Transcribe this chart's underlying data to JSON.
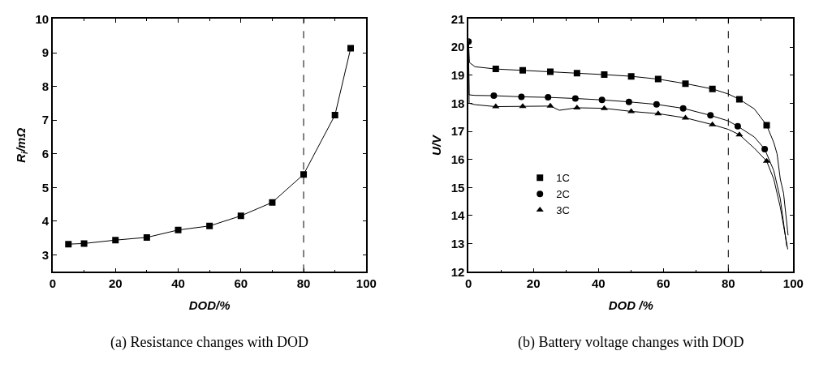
{
  "chart_data": [
    {
      "type": "line",
      "xlabel": "DOD/%",
      "ylabel": "R$_{i}$/mΩ",
      "annotations": [
        "(a) Resistance changes with DOD"
      ],
      "x": [
        5,
        10,
        20,
        30,
        40,
        50,
        60,
        70,
        80,
        90,
        95
      ],
      "series": [
        {
          "color": "#000000",
          "values": [
            3.32,
            3.34,
            3.44,
            3.52,
            3.74,
            3.86,
            4.16,
            4.56,
            5.39,
            7.15,
            9.13
          ],
          "marker": "square"
        }
      ],
      "xlim": [
        0,
        100
      ],
      "xticks": [
        0,
        20,
        40,
        60,
        80,
        100
      ],
      "ylim": [
        2.5,
        10
      ],
      "yticks": [
        3,
        4,
        5,
        6,
        7,
        8,
        9,
        10
      ],
      "ref_lines": [
        {
          "axis": "x",
          "value": 80,
          "line_style": "dashed",
          "color": "#000000"
        }
      ]
    },
    {
      "type": "line",
      "xlabel": "DOD /%",
      "ylabel": "U/V",
      "annotations": [
        "(b) Battery voltage changes with DOD"
      ],
      "series": [
        {
          "color": "#000000",
          "marker": "none",
          "x": [
            0,
            0.3,
            2,
            8.4,
            16.7,
            25.2,
            33.4,
            41.8,
            50.1,
            58.4,
            66.8,
            75.1,
            80,
            83.4,
            88,
            91.8,
            94,
            95,
            96,
            97,
            98.4
          ],
          "values": [
            20.2,
            19.45,
            19.3,
            19.22,
            19.17,
            19.12,
            19.07,
            19.02,
            18.96,
            18.86,
            18.7,
            18.51,
            18.33,
            18.14,
            17.8,
            17.22,
            16.6,
            16.2,
            15.3,
            14.8,
            13.3
          ]
        },
        {
          "color": "#000000",
          "marker": "none",
          "x": [
            0,
            0.2,
            2,
            7.8,
            16.3,
            24.5,
            32.9,
            41.1,
            49.4,
            57.9,
            66.1,
            74.5,
            80,
            82.9,
            88,
            91.2,
            94,
            96,
            98
          ],
          "values": [
            20.2,
            18.3,
            18.28,
            18.27,
            18.23,
            18.21,
            18.17,
            18.12,
            18.05,
            17.96,
            17.82,
            17.57,
            17.37,
            17.18,
            16.8,
            16.37,
            15.6,
            14.6,
            12.9
          ]
        },
        {
          "color": "#000000",
          "marker": "none",
          "x": [
            0,
            0.2,
            2,
            8.4,
            16.7,
            25.2,
            28,
            33.4,
            41.8,
            50.1,
            58.4,
            66.8,
            75.1,
            80,
            83.4,
            88,
            91.8,
            94,
            96,
            98.3
          ],
          "values": [
            20.1,
            18.0,
            17.95,
            17.88,
            17.89,
            17.9,
            17.75,
            17.84,
            17.82,
            17.71,
            17.63,
            17.48,
            17.24,
            17.07,
            16.88,
            16.4,
            15.94,
            15.3,
            14.3,
            12.8
          ]
        },
        {
          "name": "1C",
          "type": "scatter",
          "color": "#000000",
          "marker": "square",
          "x": [
            8.4,
            16.7,
            25.2,
            33.4,
            41.8,
            50.1,
            58.4,
            66.8,
            75.1,
            83.4,
            91.8
          ],
          "values": [
            19.22,
            19.17,
            19.12,
            19.07,
            19.02,
            18.96,
            18.86,
            18.7,
            18.51,
            18.14,
            17.22
          ]
        },
        {
          "name": "2C",
          "type": "scatter",
          "color": "#000000",
          "marker": "circle",
          "x": [
            0,
            7.8,
            16.3,
            24.5,
            32.9,
            41.1,
            49.4,
            57.9,
            66.1,
            74.5,
            82.9,
            91.2
          ],
          "values": [
            20.2,
            18.27,
            18.23,
            18.21,
            18.17,
            18.12,
            18.05,
            17.96,
            17.82,
            17.57,
            17.18,
            16.37
          ]
        },
        {
          "name": "3C",
          "type": "scatter",
          "color": "#000000",
          "marker": "triangle",
          "x": [
            8.4,
            16.7,
            25.2,
            33.4,
            41.8,
            50.1,
            58.4,
            66.8,
            75.1,
            83.4,
            91.8
          ],
          "values": [
            17.88,
            17.89,
            17.9,
            17.84,
            17.82,
            17.71,
            17.63,
            17.48,
            17.24,
            16.88,
            15.94
          ]
        }
      ],
      "xlim": [
        0,
        100
      ],
      "xticks": [
        0,
        20,
        40,
        60,
        80,
        100
      ],
      "ylim": [
        12,
        21
      ],
      "yticks": [
        12,
        13,
        14,
        15,
        16,
        17,
        18,
        19,
        20,
        21
      ],
      "ref_lines": [
        {
          "axis": "x",
          "value": 80,
          "line_style": "dashed",
          "color": "#000000"
        }
      ],
      "legend": "left"
    }
  ]
}
